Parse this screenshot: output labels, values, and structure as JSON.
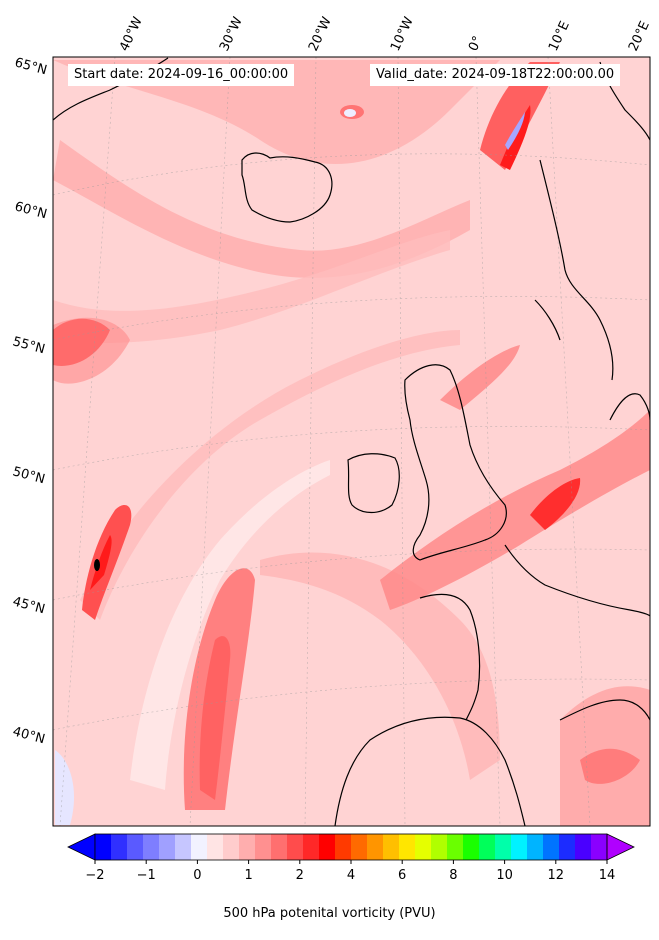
{
  "header": {
    "start": "Start date: 2024-09-16_00:00:00",
    "valid": "Valid_date: 2024-09-18T22:00:00.00"
  },
  "lon_labels": [
    "40°W",
    "30°W",
    "20°W",
    "10°W",
    "0°",
    "10°E",
    "20°E"
  ],
  "lat_labels": [
    "65°N",
    "60°N",
    "55°N",
    "50°N",
    "45°N",
    "40°N"
  ],
  "colorbar": {
    "title": "500 hPa potenital vorticity (PVU)",
    "ticks": [
      "−2",
      "−1",
      "0",
      "1",
      "2",
      "4",
      "6",
      "8",
      "10",
      "12",
      "14"
    ],
    "colors": [
      "#0000ff",
      "#3030ff",
      "#5a5aff",
      "#7e7eff",
      "#a0a0ff",
      "#c6c6ff",
      "#f2f2ff",
      "#ffe4e4",
      "#ffcccc",
      "#ffaeae",
      "#ff9090",
      "#ff6f6f",
      "#ff4c4c",
      "#ff2828",
      "#ff0000",
      "#ff3a00",
      "#ff6a00",
      "#ff9500",
      "#ffbf00",
      "#ffe600",
      "#e5ff00",
      "#b0ff00",
      "#6aff00",
      "#1aff00",
      "#00ff5a",
      "#00ffaa",
      "#00f2ff",
      "#00b4ff",
      "#0074ff",
      "#1c2cff",
      "#4a00ff",
      "#8a00ff"
    ],
    "under_color": "#0000ff",
    "over_color": "#b000ff"
  },
  "colors": {
    "background_field": "#ffd3d3",
    "coast": "#000000"
  }
}
